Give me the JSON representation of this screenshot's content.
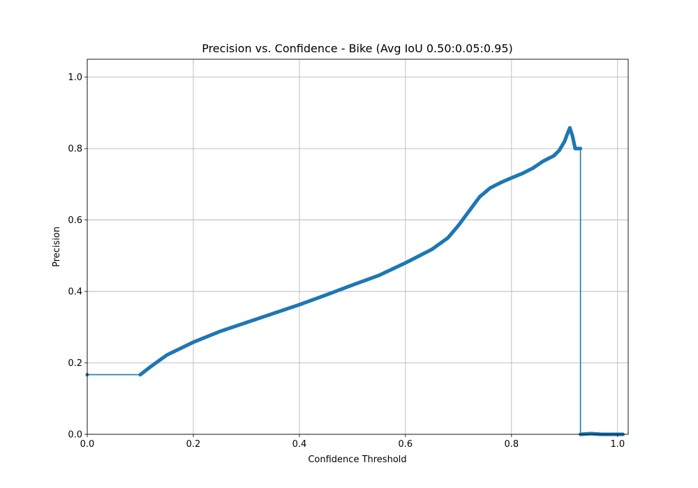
{
  "chart_data": {
    "type": "line",
    "title": "Precision vs. Confidence - Bike (Avg IoU 0.50:0.05:0.95)",
    "xlabel": "Confidence Threshold",
    "ylabel": "Precision",
    "xlim": [
      0.0,
      1.02
    ],
    "ylim": [
      0.0,
      1.05
    ],
    "x_ticks": [
      "0.0",
      "0.2",
      "0.4",
      "0.6",
      "0.8",
      "1.0"
    ],
    "y_ticks": [
      "0.0",
      "0.2",
      "0.4",
      "0.6",
      "0.8",
      "1.0"
    ],
    "grid": true,
    "legend": "none",
    "color": "#1f77b4",
    "series": [
      {
        "x": [
          0.0,
          0.1,
          0.1,
          0.12,
          0.15,
          0.2,
          0.25,
          0.3,
          0.35,
          0.4,
          0.45,
          0.5,
          0.55,
          0.6,
          0.65,
          0.68,
          0.7,
          0.72,
          0.74,
          0.76,
          0.78,
          0.8,
          0.82,
          0.84,
          0.86,
          0.88,
          0.89,
          0.9,
          0.905,
          0.91,
          0.915,
          0.92,
          0.925,
          0.93,
          0.93,
          0.95,
          0.97,
          1.0,
          1.01
        ],
        "y": [
          0.167,
          0.167,
          0.167,
          0.19,
          0.222,
          0.258,
          0.288,
          0.313,
          0.338,
          0.363,
          0.39,
          0.418,
          0.445,
          0.48,
          0.518,
          0.55,
          0.585,
          0.625,
          0.665,
          0.69,
          0.705,
          0.718,
          0.73,
          0.745,
          0.765,
          0.78,
          0.795,
          0.82,
          0.84,
          0.858,
          0.835,
          0.8,
          0.8,
          0.8,
          0.0,
          0.002,
          0.0,
          0.0,
          0.0
        ]
      }
    ]
  }
}
